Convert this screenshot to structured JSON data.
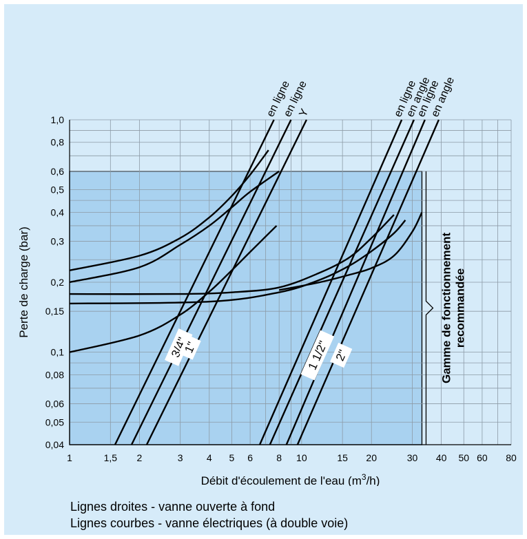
{
  "chart_data": {
    "type": "line",
    "xscale": "log",
    "yscale": "log",
    "xlim": [
      1,
      80
    ],
    "ylim": [
      0.04,
      1.0
    ],
    "grid": true,
    "xlabel": "Débit d'écoulement de l'eau (m3/h)",
    "ylabel": "Perte de charge (bar)",
    "x_ticks": [
      "1",
      "1,5",
      "2",
      "3",
      "4",
      "5",
      "6",
      "8",
      "10",
      "15",
      "20",
      "30",
      "40",
      "50",
      "60",
      "80"
    ],
    "y_ticks": [
      "0,04",
      "0,05",
      "0,06",
      "0,08",
      "0,1",
      "0,15",
      "0,2",
      "0,3",
      "0,4",
      "0,5",
      "0,6",
      "0,8",
      "1,0"
    ],
    "recommended_range": {
      "x": [
        1,
        33
      ],
      "y": [
        0.04,
        0.6
      ],
      "label_line1": "Gamme de fonctionnement",
      "label_line2": "recommandée"
    },
    "straight_lines": [
      {
        "size": "3/4\"",
        "label": "en ligne",
        "x": [
          1.57,
          7.6
        ],
        "y": [
          0.04,
          1.0
        ]
      },
      {
        "size": "",
        "label": "en ligne",
        "x": [
          1.85,
          9.0
        ],
        "y": [
          0.04,
          1.0
        ]
      },
      {
        "size": "1\"",
        "label": "Y",
        "x": [
          2.15,
          10.5
        ],
        "y": [
          0.04,
          1.0
        ]
      },
      {
        "size": "1 1/2\"",
        "label": "en ligne",
        "x": [
          6.6,
          27.0
        ],
        "y": [
          0.04,
          1.0
        ]
      },
      {
        "size": "",
        "label": "en angle",
        "x": [
          7.3,
          30.5
        ],
        "y": [
          0.04,
          1.0
        ]
      },
      {
        "size": "2\"",
        "label": "en ligne",
        "x": [
          8.6,
          34.0
        ],
        "y": [
          0.04,
          1.0
        ]
      },
      {
        "size": "",
        "label": "en angle",
        "x": [
          9.6,
          39.0
        ],
        "y": [
          0.04,
          1.0
        ]
      }
    ],
    "curves": [
      {
        "x": [
          1,
          2,
          3,
          4,
          5,
          6,
          7.2
        ],
        "y": [
          0.225,
          0.26,
          0.31,
          0.38,
          0.47,
          0.58,
          0.74
        ]
      },
      {
        "x": [
          1,
          2,
          3,
          4,
          5,
          6,
          8
        ],
        "y": [
          0.2,
          0.232,
          0.29,
          0.35,
          0.42,
          0.49,
          0.6
        ]
      },
      {
        "x": [
          1,
          2,
          3,
          4,
          5,
          6,
          7.8
        ],
        "y": [
          0.1,
          0.118,
          0.145,
          0.182,
          0.225,
          0.27,
          0.35
        ]
      },
      {
        "x": [
          1,
          3,
          5,
          8,
          12,
          16,
          20,
          25
        ],
        "y": [
          0.178,
          0.178,
          0.181,
          0.19,
          0.22,
          0.255,
          0.31,
          0.39
        ]
      },
      {
        "x": [
          1,
          4,
          8,
          12,
          16,
          20,
          25,
          28
        ],
        "y": [
          0.162,
          0.165,
          0.181,
          0.205,
          0.235,
          0.272,
          0.325,
          0.37
        ]
      },
      {
        "x": [
          8,
          12,
          16,
          20,
          25,
          30,
          33
        ],
        "y": [
          0.185,
          0.2,
          0.215,
          0.23,
          0.26,
          0.33,
          0.4
        ]
      }
    ]
  },
  "notes": {
    "line1": "Lignes droites - vanne ouverte à fond",
    "line2": "Lignes courbes - vanne électriques (à double voie)"
  }
}
